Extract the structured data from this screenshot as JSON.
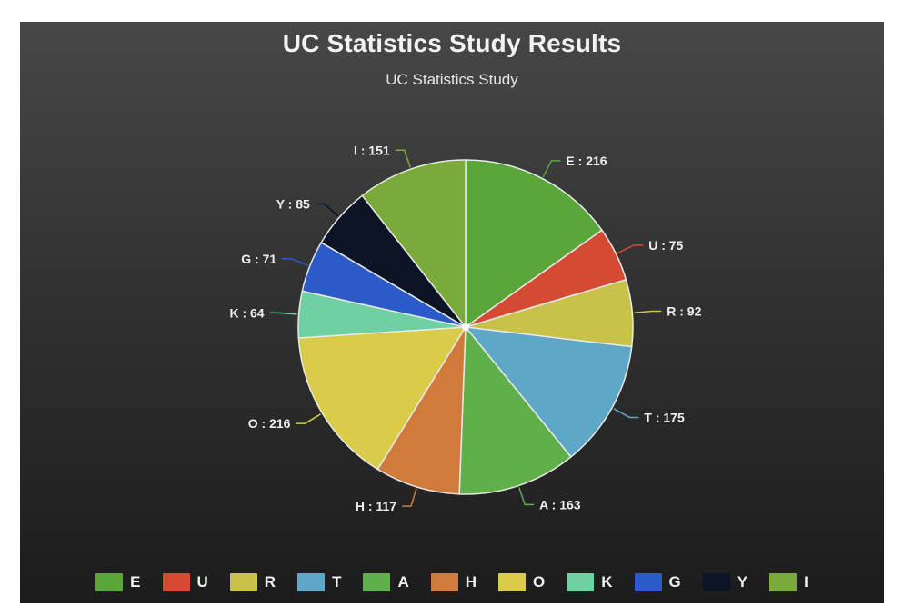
{
  "chart_data": {
    "type": "pie",
    "title": "UC Statistics Study Results",
    "subtitle": "UC Statistics Study",
    "legend_position": "bottom",
    "slices": [
      {
        "label": "E",
        "value": 216,
        "color": "#5aa63a",
        "data_label": "E : 216"
      },
      {
        "label": "U",
        "value": 75,
        "color": "#d44a33",
        "data_label": "U : 75"
      },
      {
        "label": "R",
        "value": 92,
        "color": "#c9c24a",
        "data_label": "R : 92"
      },
      {
        "label": "T",
        "value": 175,
        "color": "#5ea7c7",
        "data_label": "T : 175"
      },
      {
        "label": "A",
        "value": 163,
        "color": "#5fb04a",
        "data_label": "A : 163"
      },
      {
        "label": "H",
        "value": 117,
        "color": "#d07a3c",
        "data_label": "H : 117"
      },
      {
        "label": "O",
        "value": 216,
        "color": "#d8cc48",
        "data_label": "O : 216"
      },
      {
        "label": "K",
        "value": 64,
        "color": "#6fd0a4",
        "data_label": "K : 64"
      },
      {
        "label": "G",
        "value": 71,
        "color": "#2b5ac9",
        "data_label": "G : 71"
      },
      {
        "label": "Y",
        "value": 85,
        "color": "#0c1426",
        "data_label": "Y : 85"
      },
      {
        "label": "I",
        "value": 151,
        "color": "#7aab3a",
        "data_label": "I : 151"
      }
    ]
  }
}
